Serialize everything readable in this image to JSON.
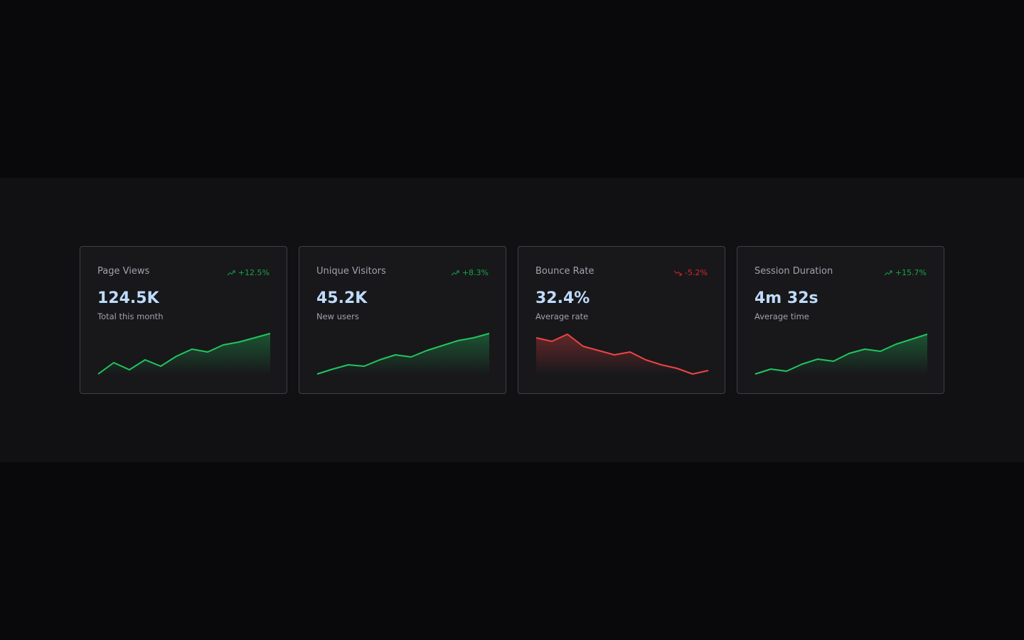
{
  "colors": {
    "up": "#22c55e",
    "down": "#ef4444",
    "trend_up_text": "#16a34a",
    "trend_down_text": "#dc2626",
    "value": "#bfdbfe"
  },
  "cards": [
    {
      "title": "Page Views",
      "trend": "+12.5%",
      "direction": "up",
      "trend_icon": "trending-up-icon",
      "value": "124.5K",
      "subtitle": "Total this month",
      "spark": [
        0,
        16,
        6,
        20,
        11,
        25,
        35,
        31,
        41,
        45,
        51,
        57
      ]
    },
    {
      "title": "Unique Visitors",
      "trend": "+8.3%",
      "direction": "up",
      "trend_icon": "trending-up-icon",
      "value": "45.2K",
      "subtitle": "New users",
      "spark": [
        0,
        7,
        13,
        11,
        20,
        27,
        24,
        33,
        40,
        47,
        51,
        57
      ]
    },
    {
      "title": "Bounce Rate",
      "trend": "-5.2%",
      "direction": "down",
      "trend_icon": "trending-down-icon",
      "value": "32.4%",
      "subtitle": "Average rate",
      "spark": [
        51,
        46,
        56,
        39,
        33,
        27,
        31,
        20,
        13,
        8,
        0,
        5
      ]
    },
    {
      "title": "Session Duration",
      "trend": "+15.7%",
      "direction": "up",
      "trend_icon": "trending-up-icon",
      "value": "4m 32s",
      "subtitle": "Average time",
      "spark": [
        0,
        7,
        4,
        14,
        21,
        18,
        29,
        35,
        32,
        42,
        49,
        56
      ]
    }
  ]
}
